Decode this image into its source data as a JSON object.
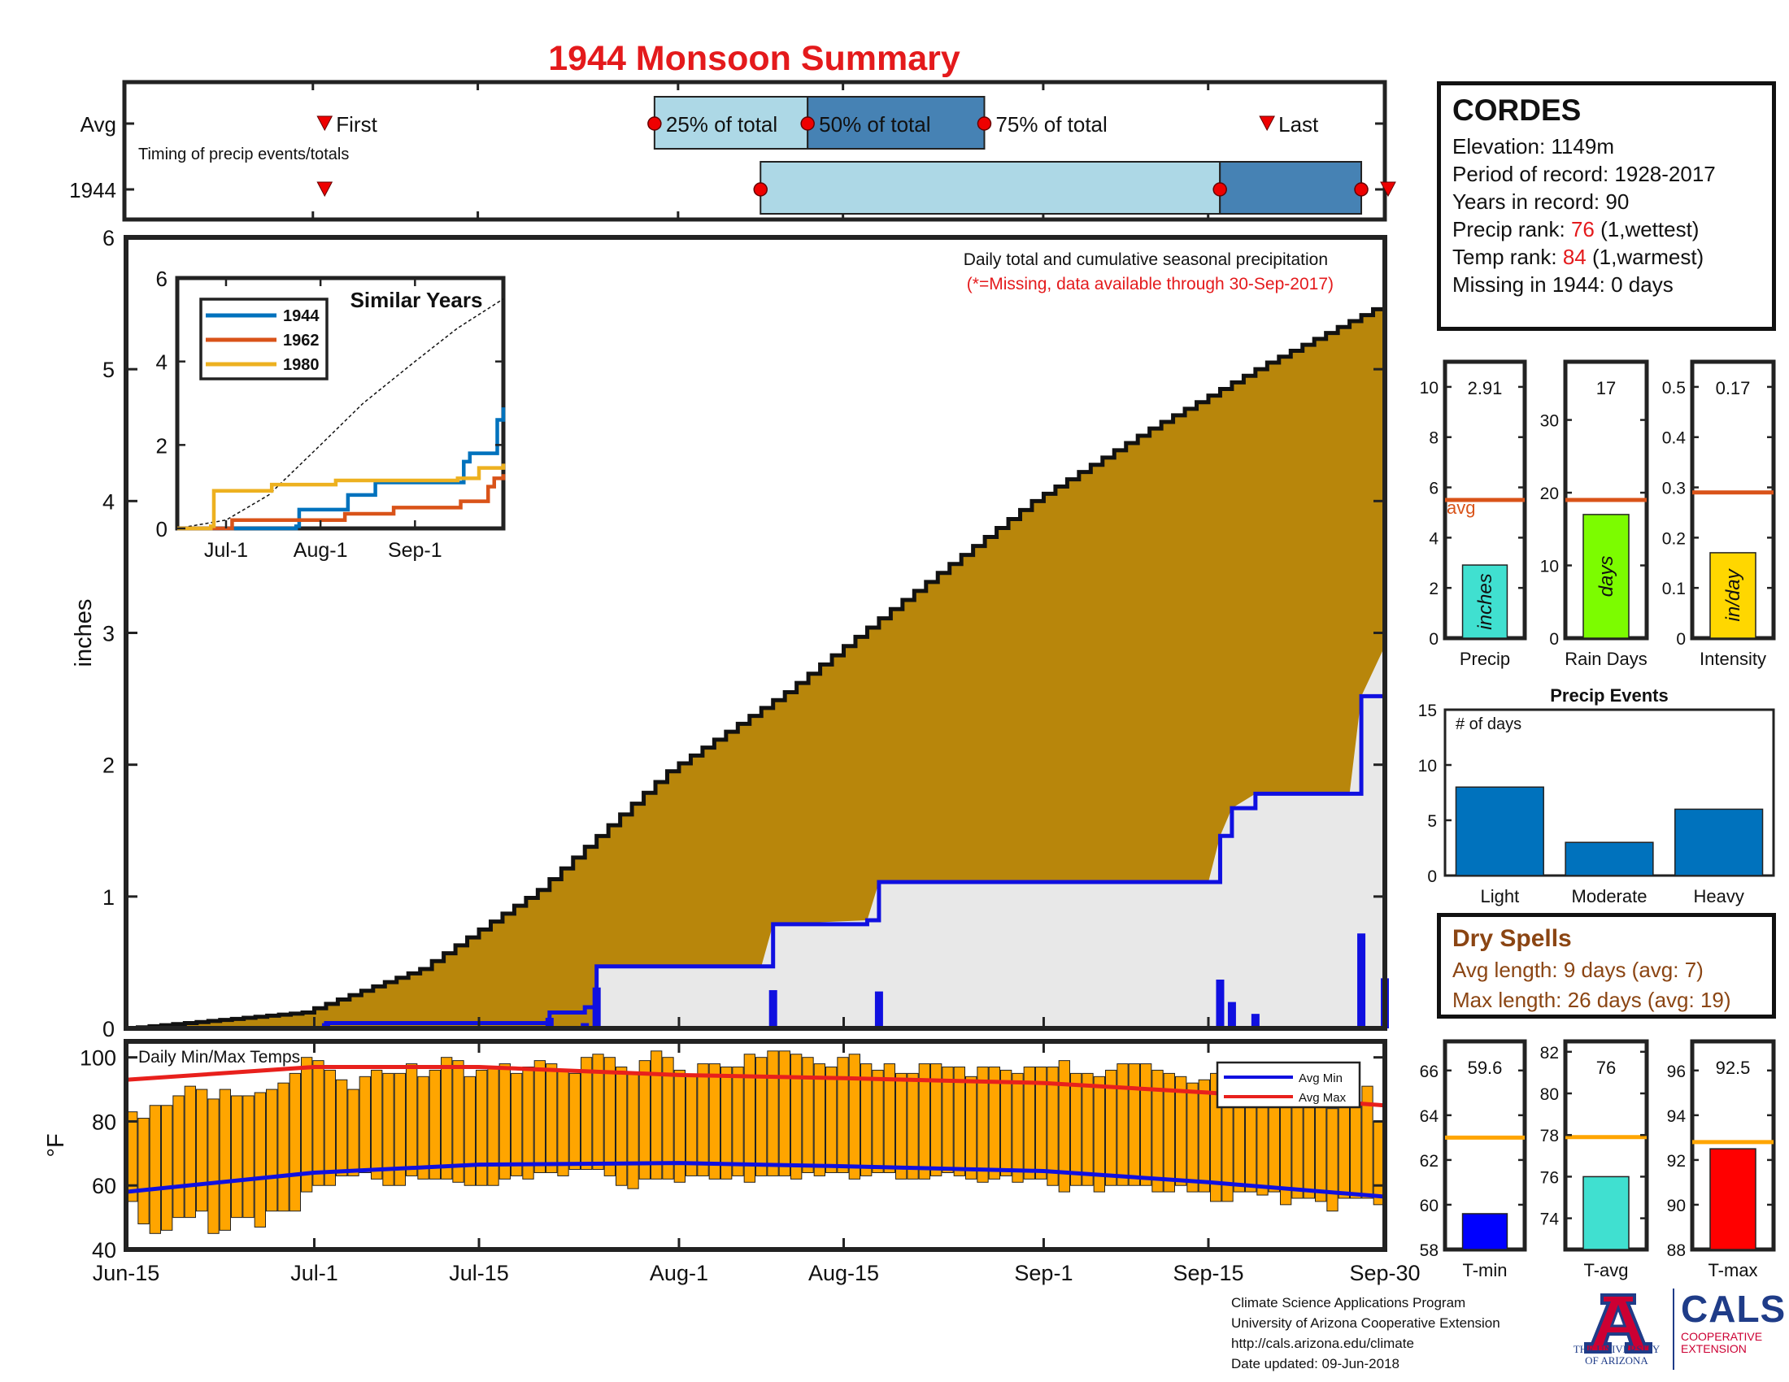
{
  "title": "1944 Monsoon Summary",
  "station": {
    "name": "CORDES",
    "elevation_label": "Elevation: 1149m",
    "period_label": "Period of record: 1928-2017",
    "years_label": "Years in record: 90",
    "precip_rank_prefix": "Precip rank: ",
    "precip_rank_value": "76",
    "precip_rank_suffix": " (1,wettest)",
    "temp_rank_prefix": "Temp rank: ",
    "temp_rank_value": "84",
    "temp_rank_suffix": " (1,warmest)",
    "missing_label": "Missing in 1944: 0 days"
  },
  "dry_spells": {
    "title": "Dry Spells",
    "avg_label": "Avg length: 9 days (avg: 7)",
    "max_label": "Max length: 26 days (avg: 19)"
  },
  "footer": {
    "line1": "Climate Science Applications Program",
    "line2": "University of Arizona Cooperative Extension",
    "line3": "http://cals.arizona.edu/climate",
    "line4": "Date updated: 09-Jun-2018"
  },
  "logos": {
    "uofa_line1": "THE UNIVERSITY",
    "uofa_line2": "OF ARIZONA",
    "cals_text": "CALS",
    "cals_sub1": "COOPERATIVE",
    "cals_sub2": "EXTENSION"
  },
  "colors": {
    "title": "#e41a1c",
    "cumulative_fill": "#b8860b",
    "avg_fill": "#e8e8e8",
    "year_line": "#1010e0",
    "daily_bar": "#1010e0",
    "temp_bar": "#ffa500",
    "avg_max": "#e8201c",
    "avg_min": "#1010e0",
    "light_blue": "#add8e6",
    "steel_blue": "#4682b4",
    "series_1944": "#0072bd",
    "series_1962": "#d95319",
    "series_1980": "#edb120"
  },
  "chart_data": [
    {
      "id": "timing",
      "type": "table",
      "row_labels": [
        "Avg",
        "1944"
      ],
      "note": "Timing of precip events/totals",
      "labels": {
        "first": "First",
        "p25": "25% of total",
        "p50": "50% of total",
        "p75": "75% of total",
        "last": "Last"
      },
      "x_start": "Jun-15",
      "x_end": "Sep-30",
      "avg": {
        "first": "Jul-2",
        "p25": "Jul-30",
        "p50": "Aug-12",
        "p75": "Aug-27",
        "last": "Sep-20"
      },
      "year": {
        "first": "Jul-2",
        "p25": "Aug-8",
        "p50": "Sep-16",
        "p75": "Sep-28",
        "last": "Sep-30"
      }
    },
    {
      "id": "cumulative",
      "type": "area",
      "title": "Daily total and cumulative seasonal precipitation",
      "subtitle": "(*=Missing, data available through 30-Sep-2017)",
      "ylabel": "inches",
      "ylim": [
        0,
        6
      ],
      "yticks": [
        0,
        1,
        2,
        3,
        4,
        5,
        6
      ],
      "x_start": "Jun-15",
      "x_end": "Sep-30",
      "xticks": [
        "Jun-15",
        "Jul-1",
        "Jul-15",
        "Aug-1",
        "Aug-15",
        "Sep-1",
        "Sep-15",
        "Sep-30"
      ],
      "avg_cumulative": [
        {
          "x": "Jun-15",
          "y": 0.0
        },
        {
          "x": "Jun-30",
          "y": 0.12
        },
        {
          "x": "Jul-10",
          "y": 0.45
        },
        {
          "x": "Jul-20",
          "y": 1.05
        },
        {
          "x": "Jul-31",
          "y": 1.95
        },
        {
          "x": "Aug-10",
          "y": 2.55
        },
        {
          "x": "Aug-20",
          "y": 3.25
        },
        {
          "x": "Aug-31",
          "y": 4.0
        },
        {
          "x": "Sep-10",
          "y": 4.55
        },
        {
          "x": "Sep-20",
          "y": 5.05
        },
        {
          "x": "Sep-30",
          "y": 5.5
        }
      ],
      "year_cumulative": [
        {
          "x": "Jun-15",
          "y": 0.0
        },
        {
          "x": "Jul-1",
          "y": 0.0
        },
        {
          "x": "Jul-2",
          "y": 0.04
        },
        {
          "x": "Jul-20",
          "y": 0.04
        },
        {
          "x": "Jul-21",
          "y": 0.12
        },
        {
          "x": "Jul-24",
          "y": 0.16
        },
        {
          "x": "Jul-25",
          "y": 0.47
        },
        {
          "x": "Aug-8",
          "y": 0.47
        },
        {
          "x": "Aug-9",
          "y": 0.79
        },
        {
          "x": "Aug-17",
          "y": 0.82
        },
        {
          "x": "Aug-18",
          "y": 1.11
        },
        {
          "x": "Sep-15",
          "y": 1.11
        },
        {
          "x": "Sep-16",
          "y": 1.46
        },
        {
          "x": "Sep-17",
          "y": 1.67
        },
        {
          "x": "Sep-19",
          "y": 1.78
        },
        {
          "x": "Sep-27",
          "y": 1.78
        },
        {
          "x": "Sep-28",
          "y": 2.52
        },
        {
          "x": "Sep-30",
          "y": 2.9
        }
      ],
      "daily_bars": [
        {
          "x": "Jul-2",
          "y": 0.04
        },
        {
          "x": "Jul-21",
          "y": 0.08
        },
        {
          "x": "Jul-24",
          "y": 0.04
        },
        {
          "x": "Jul-25",
          "y": 0.31
        },
        {
          "x": "Aug-9",
          "y": 0.29
        },
        {
          "x": "Aug-18",
          "y": 0.28
        },
        {
          "x": "Sep-16",
          "y": 0.37
        },
        {
          "x": "Sep-17",
          "y": 0.2
        },
        {
          "x": "Sep-19",
          "y": 0.11
        },
        {
          "x": "Sep-28",
          "y": 0.72
        },
        {
          "x": "Sep-30",
          "y": 0.38
        }
      ]
    },
    {
      "id": "similar_years",
      "type": "line",
      "title": "Similar Years",
      "ylim": [
        0,
        6
      ],
      "yticks": [
        0,
        2,
        4,
        6
      ],
      "xticks": [
        "Jul-1",
        "Aug-1",
        "Sep-1"
      ],
      "series": [
        {
          "name": "1944",
          "color": "#0072bd",
          "points": [
            {
              "x": "Jun-15",
              "y": 0
            },
            {
              "x": "Jul-24",
              "y": 0.05
            },
            {
              "x": "Jul-25",
              "y": 0.45
            },
            {
              "x": "Aug-9",
              "y": 0.45
            },
            {
              "x": "Aug-10",
              "y": 0.8
            },
            {
              "x": "Aug-18",
              "y": 0.8
            },
            {
              "x": "Aug-19",
              "y": 1.1
            },
            {
              "x": "Sep-15",
              "y": 1.1
            },
            {
              "x": "Sep-17",
              "y": 1.6
            },
            {
              "x": "Sep-19",
              "y": 1.8
            },
            {
              "x": "Sep-27",
              "y": 1.8
            },
            {
              "x": "Sep-28",
              "y": 2.6
            },
            {
              "x": "Sep-30",
              "y": 2.9
            }
          ]
        },
        {
          "name": "1962",
          "color": "#d95319",
          "points": [
            {
              "x": "Jun-15",
              "y": 0
            },
            {
              "x": "Jul-2",
              "y": 0
            },
            {
              "x": "Jul-3",
              "y": 0.2
            },
            {
              "x": "Aug-8",
              "y": 0.2
            },
            {
              "x": "Aug-9",
              "y": 0.35
            },
            {
              "x": "Aug-24",
              "y": 0.35
            },
            {
              "x": "Aug-25",
              "y": 0.5
            },
            {
              "x": "Sep-15",
              "y": 0.5
            },
            {
              "x": "Sep-16",
              "y": 0.65
            },
            {
              "x": "Sep-24",
              "y": 0.65
            },
            {
              "x": "Sep-25",
              "y": 1.0
            },
            {
              "x": "Sep-27",
              "y": 1.2
            },
            {
              "x": "Sep-30",
              "y": 1.3
            }
          ]
        },
        {
          "name": "1980",
          "color": "#edb120",
          "points": [
            {
              "x": "Jun-15",
              "y": 0
            },
            {
              "x": "Jun-26",
              "y": 0.05
            },
            {
              "x": "Jun-27",
              "y": 0.9
            },
            {
              "x": "Jul-15",
              "y": 0.9
            },
            {
              "x": "Jul-16",
              "y": 1.05
            },
            {
              "x": "Aug-5",
              "y": 1.05
            },
            {
              "x": "Aug-6",
              "y": 1.15
            },
            {
              "x": "Sep-14",
              "y": 1.15
            },
            {
              "x": "Sep-15",
              "y": 1.2
            },
            {
              "x": "Sep-21",
              "y": 1.2
            },
            {
              "x": "Sep-22",
              "y": 1.45
            },
            {
              "x": "Sep-30",
              "y": 1.55
            }
          ]
        }
      ],
      "average_dashed": [
        {
          "x": "Jun-15",
          "y": 0
        },
        {
          "x": "Jul-1",
          "y": 0.2
        },
        {
          "x": "Jul-15",
          "y": 0.8
        },
        {
          "x": "Aug-1",
          "y": 2.0
        },
        {
          "x": "Aug-15",
          "y": 3.0
        },
        {
          "x": "Sep-1",
          "y": 4.0
        },
        {
          "x": "Sep-15",
          "y": 4.8
        },
        {
          "x": "Sep-30",
          "y": 5.5
        }
      ]
    },
    {
      "id": "precip_total",
      "type": "bar",
      "xlabel": "Precip",
      "categories": [
        "inches"
      ],
      "values": [
        2.91
      ],
      "value_label": "2.91",
      "avg": 5.5,
      "avg_label": "avg",
      "ylim": [
        0,
        11
      ],
      "yticks": [
        0,
        2,
        4,
        6,
        8,
        10
      ],
      "color": "#40e0d0"
    },
    {
      "id": "rain_days",
      "type": "bar",
      "xlabel": "Rain Days",
      "categories": [
        "days"
      ],
      "values": [
        17
      ],
      "value_label": "17",
      "avg": 19,
      "ylim": [
        0,
        38
      ],
      "yticks": [
        0,
        10,
        20,
        30
      ],
      "color": "#7cfc00"
    },
    {
      "id": "intensity",
      "type": "bar",
      "xlabel": "Intensity",
      "categories": [
        "in/day"
      ],
      "values": [
        0.17
      ],
      "value_label": "0.17",
      "avg": 0.29,
      "ylim": [
        0,
        0.55
      ],
      "yticks": [
        0,
        0.1,
        0.2,
        0.3,
        0.4,
        0.5
      ],
      "color": "#ffd700"
    },
    {
      "id": "precip_events",
      "type": "bar",
      "title": "Precip Events",
      "ylabel": "# of days",
      "categories": [
        "Light",
        "Moderate",
        "Heavy"
      ],
      "values": [
        8,
        3,
        6
      ],
      "ylim": [
        0,
        15
      ],
      "yticks": [
        0,
        5,
        10,
        15
      ],
      "color": "#0072bd"
    },
    {
      "id": "daily_temps",
      "type": "bar",
      "title": "Daily Min/Max Temps",
      "ylabel": "°F",
      "ylim": [
        40,
        105
      ],
      "yticks": [
        40,
        60,
        80,
        100
      ],
      "x_start": "Jun-15",
      "x_end": "Sep-30",
      "xticks": [
        "Jun-15",
        "Jul-1",
        "Jul-15",
        "Aug-1",
        "Aug-15",
        "Sep-1",
        "Sep-15",
        "Sep-30"
      ],
      "legend": [
        "Avg Min",
        "Avg Max"
      ],
      "legend_position": "top-right",
      "tmax": [
        83,
        81,
        85,
        85,
        88,
        91,
        90,
        87,
        90,
        88,
        88,
        89,
        90,
        92,
        95,
        100,
        99,
        96,
        93,
        90,
        94,
        96,
        95,
        95,
        98,
        94,
        96,
        100,
        99,
        94,
        96,
        97,
        98,
        95,
        97,
        99,
        98,
        96,
        95,
        100,
        101,
        100,
        97,
        95,
        99,
        102,
        100,
        96,
        94,
        98,
        98,
        97,
        97,
        101,
        100,
        102,
        102,
        101,
        100,
        98,
        97,
        100,
        101,
        98,
        96,
        98,
        95,
        95,
        98,
        98,
        97,
        97,
        94,
        97,
        97,
        96,
        95,
        97,
        97,
        97,
        99,
        95,
        95,
        94,
        96,
        98,
        98,
        98,
        96,
        95,
        94,
        92,
        93,
        95,
        94,
        92,
        91,
        92,
        94,
        88,
        91,
        88,
        85,
        84,
        88,
        85,
        91,
        80
      ],
      "tmin": [
        55,
        48,
        45,
        46,
        50,
        50,
        52,
        45,
        46,
        50,
        50,
        47,
        52,
        52,
        52,
        58,
        60,
        60,
        63,
        63,
        64,
        62,
        60,
        60,
        63,
        62,
        62,
        62,
        61,
        60,
        60,
        60,
        62,
        63,
        62,
        64,
        64,
        63,
        65,
        65,
        65,
        63,
        60,
        59,
        62,
        62,
        62,
        61,
        63,
        63,
        62,
        62,
        63,
        61,
        63,
        63,
        63,
        62,
        64,
        63,
        64,
        64,
        62,
        63,
        64,
        64,
        62,
        62,
        62,
        63,
        64,
        63,
        62,
        61,
        62,
        63,
        61,
        62,
        62,
        60,
        58,
        60,
        60,
        58,
        60,
        60,
        60,
        60,
        58,
        58,
        60,
        58,
        58,
        55,
        55,
        58,
        58,
        57,
        58,
        54,
        56,
        56,
        55,
        52,
        56,
        56,
        56,
        54
      ],
      "avg_max": [
        {
          "x": "Jun-15",
          "y": 93.0
        },
        {
          "x": "Jul-1",
          "y": 97.0
        },
        {
          "x": "Jul-15",
          "y": 97.0
        },
        {
          "x": "Aug-1",
          "y": 94.5
        },
        {
          "x": "Aug-15",
          "y": 93.5
        },
        {
          "x": "Sep-1",
          "y": 92.0
        },
        {
          "x": "Sep-15",
          "y": 89.0
        },
        {
          "x": "Sep-30",
          "y": 85.0
        }
      ],
      "avg_min": [
        {
          "x": "Jun-15",
          "y": 58.0
        },
        {
          "x": "Jul-1",
          "y": 64.0
        },
        {
          "x": "Jul-15",
          "y": 66.5
        },
        {
          "x": "Aug-1",
          "y": 67.0
        },
        {
          "x": "Aug-15",
          "y": 66.0
        },
        {
          "x": "Sep-1",
          "y": 64.5
        },
        {
          "x": "Sep-15",
          "y": 61.0
        },
        {
          "x": "Sep-30",
          "y": 56.5
        }
      ]
    },
    {
      "id": "tmin_avg",
      "type": "bar",
      "xlabel": "T-min",
      "values": [
        59.6
      ],
      "value_label": "59.6",
      "avg": 63.0,
      "ylim": [
        58,
        67.3
      ],
      "yticks": [
        58,
        60,
        62,
        64,
        66
      ],
      "color": "#0000ff"
    },
    {
      "id": "tavg_avg",
      "type": "bar",
      "xlabel": "T-avg",
      "values": [
        76
      ],
      "value_label": "76",
      "avg": 77.9,
      "ylim": [
        72.5,
        82.5
      ],
      "yticks": [
        74,
        76,
        78,
        80,
        82
      ],
      "color": "#40e0d0"
    },
    {
      "id": "tmax_avg",
      "type": "bar",
      "xlabel": "T-max",
      "values": [
        92.5
      ],
      "value_label": "92.5",
      "avg": 92.8,
      "ylim": [
        88,
        97.3
      ],
      "yticks": [
        88,
        90,
        92,
        94,
        96
      ],
      "color": "#ff0000"
    }
  ]
}
